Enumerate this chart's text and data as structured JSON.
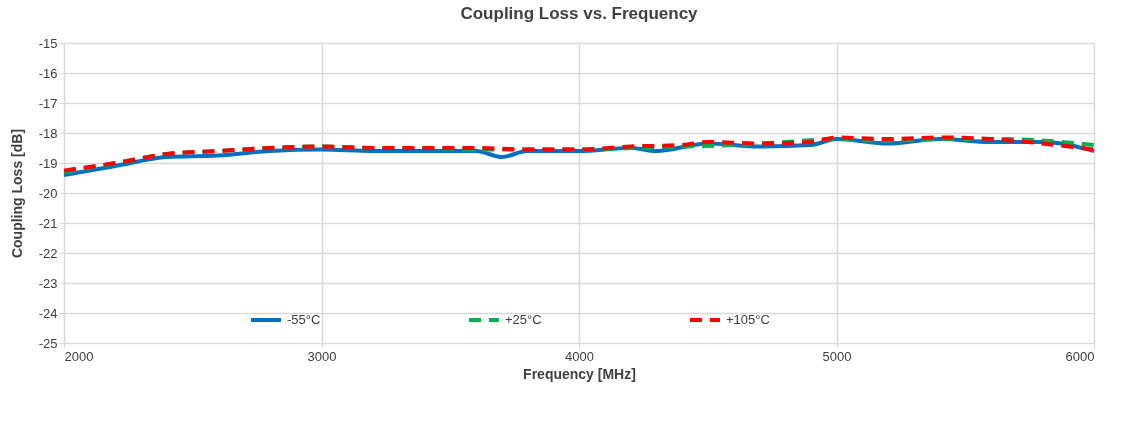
{
  "chart_data": {
    "type": "line",
    "title": "Coupling Loss vs. Frequency",
    "xlabel": "Frequency [MHz]",
    "ylabel": "Coupling Loss [dB]",
    "xlim": [
      2000,
      6000
    ],
    "xticks": [
      2000,
      3000,
      4000,
      5000,
      6000
    ],
    "ylim": [
      -25,
      -15
    ],
    "yticks": [
      -25,
      -24,
      -23,
      -22,
      -21,
      -20,
      -19,
      -18,
      -17,
      -16,
      -15
    ],
    "grid": true,
    "legend": "bottom",
    "marker": "none",
    "series": [
      {
        "name": "-55°C",
        "color": "#0070c0",
        "line_style": "solid",
        "x": [
          2000,
          2200,
          2400,
          2600,
          2800,
          3000,
          3200,
          3400,
          3600,
          3700,
          3800,
          4000,
          4200,
          4300,
          4500,
          4700,
          4900,
          5000,
          5200,
          5400,
          5600,
          5800,
          6000
        ],
        "values": [
          -19.4,
          -19.1,
          -18.8,
          -18.75,
          -18.6,
          -18.55,
          -18.6,
          -18.6,
          -18.6,
          -18.8,
          -18.6,
          -18.6,
          -18.5,
          -18.6,
          -18.35,
          -18.45,
          -18.4,
          -18.2,
          -18.35,
          -18.2,
          -18.3,
          -18.3,
          -18.6
        ]
      },
      {
        "name": "+25°C",
        "color": "#00b050",
        "line_style": "dashed",
        "x": [
          2000,
          2200,
          2400,
          2600,
          2800,
          3000,
          3200,
          3400,
          3600,
          3800,
          4000,
          4200,
          4400,
          4600,
          4800,
          5000,
          5200,
          5400,
          5600,
          5800,
          6000
        ],
        "values": [
          -19.3,
          -19.0,
          -18.7,
          -18.6,
          -18.5,
          -18.45,
          -18.5,
          -18.5,
          -18.55,
          -18.55,
          -18.55,
          -18.5,
          -18.45,
          -18.4,
          -18.3,
          -18.2,
          -18.25,
          -18.2,
          -18.2,
          -18.25,
          -18.4
        ]
      },
      {
        "name": "+105°C",
        "color": "#ff0000",
        "line_style": "dashed",
        "x": [
          2000,
          2200,
          2400,
          2600,
          2800,
          3000,
          3200,
          3400,
          3600,
          3800,
          4000,
          4200,
          4400,
          4500,
          4700,
          4900,
          5000,
          5200,
          5400,
          5600,
          5800,
          6000
        ],
        "values": [
          -19.25,
          -19.0,
          -18.7,
          -18.6,
          -18.5,
          -18.45,
          -18.5,
          -18.5,
          -18.5,
          -18.55,
          -18.55,
          -18.45,
          -18.4,
          -18.3,
          -18.35,
          -18.3,
          -18.15,
          -18.2,
          -18.15,
          -18.2,
          -18.35,
          -18.55
        ]
      }
    ]
  }
}
